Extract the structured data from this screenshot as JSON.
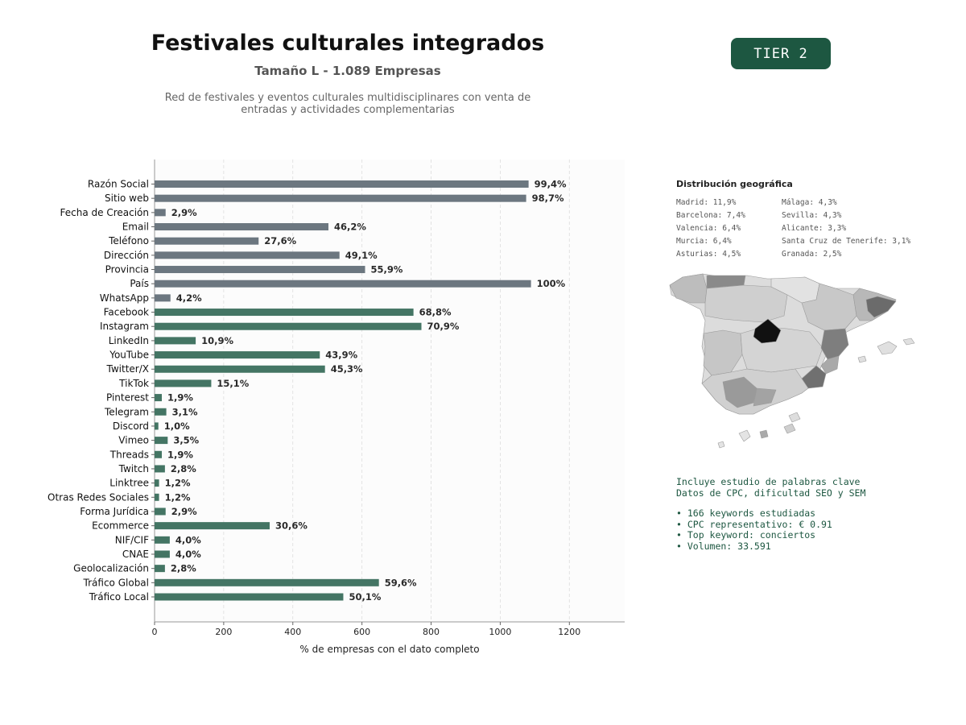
{
  "header": {
    "title": "Festivales culturales integrados",
    "subtitle": "Tamaño L - 1.089 Empresas",
    "description_line1": "Red de festivales y eventos culturales multidisciplinares con venta de",
    "description_line2": "entradas y actividades complementarias",
    "tier": "TIER 2"
  },
  "colors": {
    "gray_bar": "#6c7780",
    "green_bar": "#447564",
    "badge": "#1d5741",
    "text_green": "#1d5741"
  },
  "chart_data": {
    "type": "bar",
    "orientation": "horizontal",
    "xlabel": "% de empresas con el dato completo",
    "xlim": [
      0,
      1360
    ],
    "xticks": [
      0,
      200,
      400,
      600,
      800,
      1000,
      1200
    ],
    "grid": "vertical dashed",
    "categories": [
      "Razón Social",
      "Sitio web",
      "Fecha de Creación",
      "Email",
      "Teléfono",
      "Dirección",
      "Provincia",
      "País",
      "WhatsApp",
      "Facebook",
      "Instagram",
      "LinkedIn",
      "YouTube",
      "Twitter/X",
      "TikTok",
      "Pinterest",
      "Telegram",
      "Discord",
      "Vimeo",
      "Threads",
      "Twitch",
      "Linktree",
      "Otras Redes Sociales",
      "Forma Jurídica",
      "Ecommerce",
      "NIF/CIF",
      "CNAE",
      "Geolocalización",
      "Tráfico Global",
      "Tráfico Local"
    ],
    "values": [
      1082,
      1075,
      32,
      503,
      301,
      535,
      609,
      1089,
      46,
      749,
      772,
      119,
      478,
      493,
      164,
      21,
      34,
      11,
      38,
      21,
      30,
      13,
      13,
      32,
      333,
      44,
      44,
      30,
      649,
      546
    ],
    "labels": [
      "99,4%",
      "98,7%",
      "2,9%",
      "46,2%",
      "27,6%",
      "49,1%",
      "55,9%",
      "100%",
      "4,2%",
      "68,8%",
      "70,9%",
      "10,9%",
      "43,9%",
      "45,3%",
      "15,1%",
      "1,9%",
      "3,1%",
      "1,0%",
      "3,5%",
      "1,9%",
      "2,8%",
      "1,2%",
      "1,2%",
      "2,9%",
      "30,6%",
      "4,0%",
      "4,0%",
      "2,8%",
      "59,6%",
      "50,1%"
    ],
    "groups": [
      "gray",
      "gray",
      "gray",
      "gray",
      "gray",
      "gray",
      "gray",
      "gray",
      "gray",
      "green",
      "green",
      "green",
      "green",
      "green",
      "green",
      "green",
      "green",
      "green",
      "green",
      "green",
      "green",
      "green",
      "green",
      "green",
      "green",
      "green",
      "green",
      "green",
      "green",
      "green"
    ]
  },
  "geo": {
    "title": "Distribución geográfica",
    "regions": [
      "Madrid: 11,9%",
      "Málaga: 4,3%",
      "Barcelona: 7,4%",
      "Sevilla: 4,3%",
      "Valencia: 6,4%",
      "Alicante: 3,3%",
      "Murcia: 6,4%",
      "Santa Cruz de Tenerife: 3,1%",
      "Asturias: 4,5%",
      "Granada: 2,5%"
    ]
  },
  "keywords": {
    "line1": "Incluye estudio de palabras clave",
    "line2": "Datos de CPC, dificultad SEO y SEM",
    "bullet1": "• 166 keywords estudiadas",
    "bullet2": "• CPC representativo: € 0.91",
    "bullet3": "• Top keyword: conciertos",
    "bullet4": "• Volumen: 33.591"
  }
}
